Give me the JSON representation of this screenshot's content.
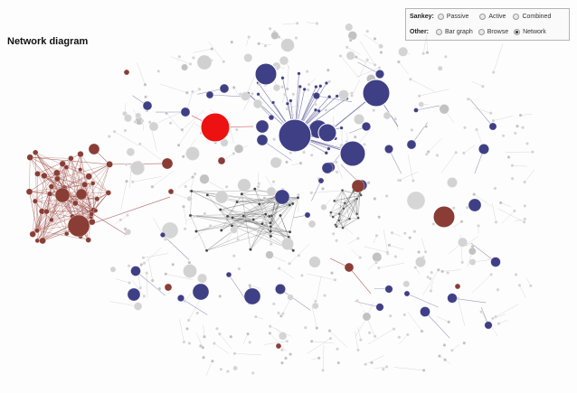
{
  "page": {
    "title": "Network diagram"
  },
  "view_selector": {
    "sankey": {
      "label": "Sankey:",
      "options": [
        {
          "name": "passive",
          "label": "Passive",
          "selected": false
        },
        {
          "name": "active",
          "label": "Active",
          "selected": false
        },
        {
          "name": "combined",
          "label": "Combined",
          "selected": false
        }
      ]
    },
    "other": {
      "label": "Other:",
      "options": [
        {
          "name": "bar-graph",
          "label": "Bar graph",
          "selected": false
        },
        {
          "name": "browse",
          "label": "Browse",
          "selected": false
        },
        {
          "name": "network",
          "label": "Network",
          "selected": true
        }
      ]
    }
  },
  "colors": {
    "highlight": "#ee1111",
    "blue": "#3f3f86",
    "brown": "#8a3d35",
    "grey": "#cccccc",
    "edge_grey": "#aaaaaa",
    "edge_blue": "#5a5a9a",
    "edge_brown": "#9a4a44"
  }
}
